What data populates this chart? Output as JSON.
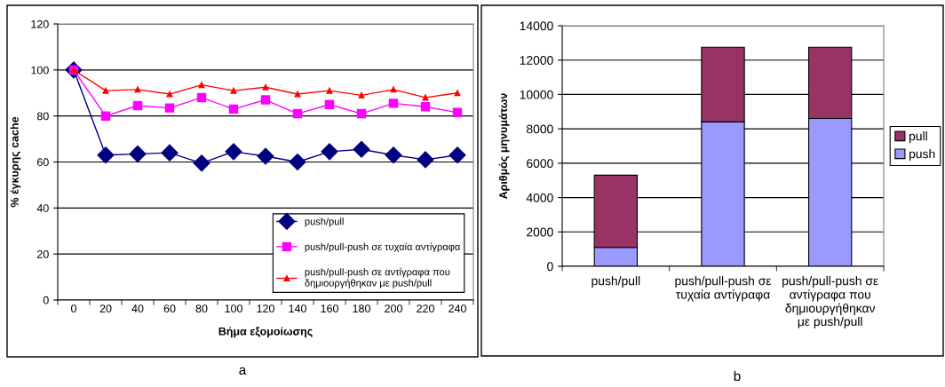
{
  "chart_data": [
    {
      "type": "line",
      "xlabel": "Βήμα εξομοίωσης",
      "ylabel": "% έγκυρης cache",
      "annotations": [
        "a"
      ],
      "categories": [
        "0",
        "20",
        "40",
        "60",
        "80",
        "100",
        "120",
        "140",
        "160",
        "180",
        "200",
        "220",
        "240"
      ],
      "ylim": [
        0,
        120
      ],
      "yticks": [
        0,
        20,
        40,
        60,
        80,
        100,
        120
      ],
      "grid": "y",
      "legend": "bottom right",
      "series": [
        {
          "name": "push/pull",
          "color": "#000080",
          "marker": "diamond",
          "values": [
            100,
            63,
            63.5,
            64,
            59.5,
            64.5,
            62.5,
            60,
            64.5,
            65.5,
            63,
            61,
            63
          ]
        },
        {
          "name": "push/pull-push σε τυχαία αντίγραφα",
          "color": "#ff00ff",
          "marker": "square",
          "values": [
            100,
            80,
            84.5,
            83.5,
            88,
            83,
            87,
            81,
            85,
            81,
            85.5,
            84,
            81.5
          ]
        },
        {
          "name": "push/pull-push σε αντίγραφα που δημιουργήθηκαν με push/pull",
          "color": "#ff0000",
          "marker": "triangle",
          "values": [
            100,
            91,
            91.5,
            89.5,
            93.5,
            91,
            92.5,
            89.5,
            91,
            89,
            91.5,
            88,
            90
          ]
        }
      ]
    },
    {
      "type": "bar",
      "stacked": true,
      "ylabel": "Αριθμός μηνυμάτων",
      "annotations": [
        "b"
      ],
      "categories": [
        "push/pull",
        "push/pull-push σε\nτυχαία αντίγραφα",
        "push/pull-push σε\nαντίγραφα που\nδημιουργήθηκαν\nμε push/pull"
      ],
      "ylim": [
        0,
        14000
      ],
      "yticks": [
        0,
        2000,
        4000,
        6000,
        8000,
        10000,
        12000,
        14000
      ],
      "grid": "y",
      "legend": "right",
      "series": [
        {
          "name": "push",
          "color": "#9999ff",
          "values": [
            1100,
            8400,
            8600
          ]
        },
        {
          "name": "pull",
          "color": "#993366",
          "values": [
            4200,
            4350,
            4150
          ]
        }
      ]
    }
  ]
}
